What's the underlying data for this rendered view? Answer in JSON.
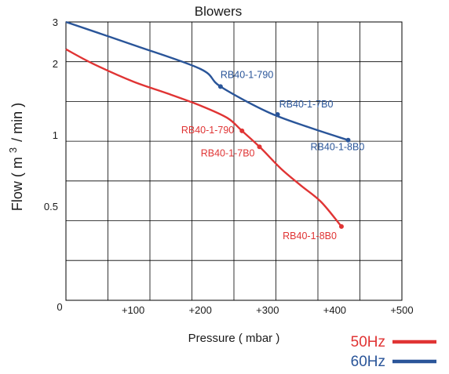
{
  "chart_data": {
    "type": "line",
    "title": "Blowers",
    "xlabel": "Pressure ( mbar )",
    "ylabel_parts": {
      "prefix": "Flow ( m",
      "sup": "3",
      "suffix": "/ min )"
    },
    "x_scale": "linear",
    "y_scale": "log",
    "xlim": [
      0,
      500
    ],
    "ylim": [
      0.2,
      3
    ],
    "grid": true,
    "x_tick_labels": [
      {
        "value": 0,
        "label": "0"
      },
      {
        "value": 100,
        "label": "+100"
      },
      {
        "value": 200,
        "label": "+200"
      },
      {
        "value": 300,
        "label": "+300"
      },
      {
        "value": 400,
        "label": "+400"
      },
      {
        "value": 500,
        "label": "+500"
      }
    ],
    "y_tick_labels": [
      {
        "value": 3,
        "label": "3"
      },
      {
        "value": 2,
        "label": "2"
      },
      {
        "value": 1,
        "label": "1"
      },
      {
        "value": 0.5,
        "label": "0.5"
      }
    ],
    "legend": {
      "placement": "bottom-right"
    },
    "series": [
      {
        "name": "50Hz",
        "color": "#e03434",
        "curve": [
          {
            "x": 0,
            "y": 2.3
          },
          {
            "x": 40,
            "y": 2.0
          },
          {
            "x": 100,
            "y": 1.68
          },
          {
            "x": 150,
            "y": 1.5
          },
          {
            "x": 200,
            "y": 1.33
          },
          {
            "x": 240,
            "y": 1.18
          },
          {
            "x": 262,
            "y": 1.04
          },
          {
            "x": 290,
            "y": 0.88
          },
          {
            "x": 320,
            "y": 0.72
          },
          {
            "x": 350,
            "y": 0.61
          },
          {
            "x": 380,
            "y": 0.52
          },
          {
            "x": 410,
            "y": 0.41
          }
        ],
        "points": [
          {
            "x": 262,
            "y": 1.04,
            "label": "RB40-1-790"
          },
          {
            "x": 288,
            "y": 0.89,
            "label": "RB40-1-7B0"
          },
          {
            "x": 410,
            "y": 0.41,
            "label": "RB40-1-8B0"
          }
        ]
      },
      {
        "name": "60Hz",
        "color": "#2a5599",
        "curve": [
          {
            "x": 0,
            "y": 3.0
          },
          {
            "x": 100,
            "y": 2.4
          },
          {
            "x": 200,
            "y": 1.9
          },
          {
            "x": 230,
            "y": 1.6
          },
          {
            "x": 300,
            "y": 1.25
          },
          {
            "x": 360,
            "y": 1.08
          },
          {
            "x": 420,
            "y": 0.95
          }
        ],
        "points": [
          {
            "x": 230,
            "y": 1.6,
            "label": "RB40-1-790"
          },
          {
            "x": 315,
            "y": 1.22,
            "label": "RB40-1-7B0"
          },
          {
            "x": 420,
            "y": 0.95,
            "label": "RB40-1-8B0"
          }
        ]
      }
    ]
  }
}
